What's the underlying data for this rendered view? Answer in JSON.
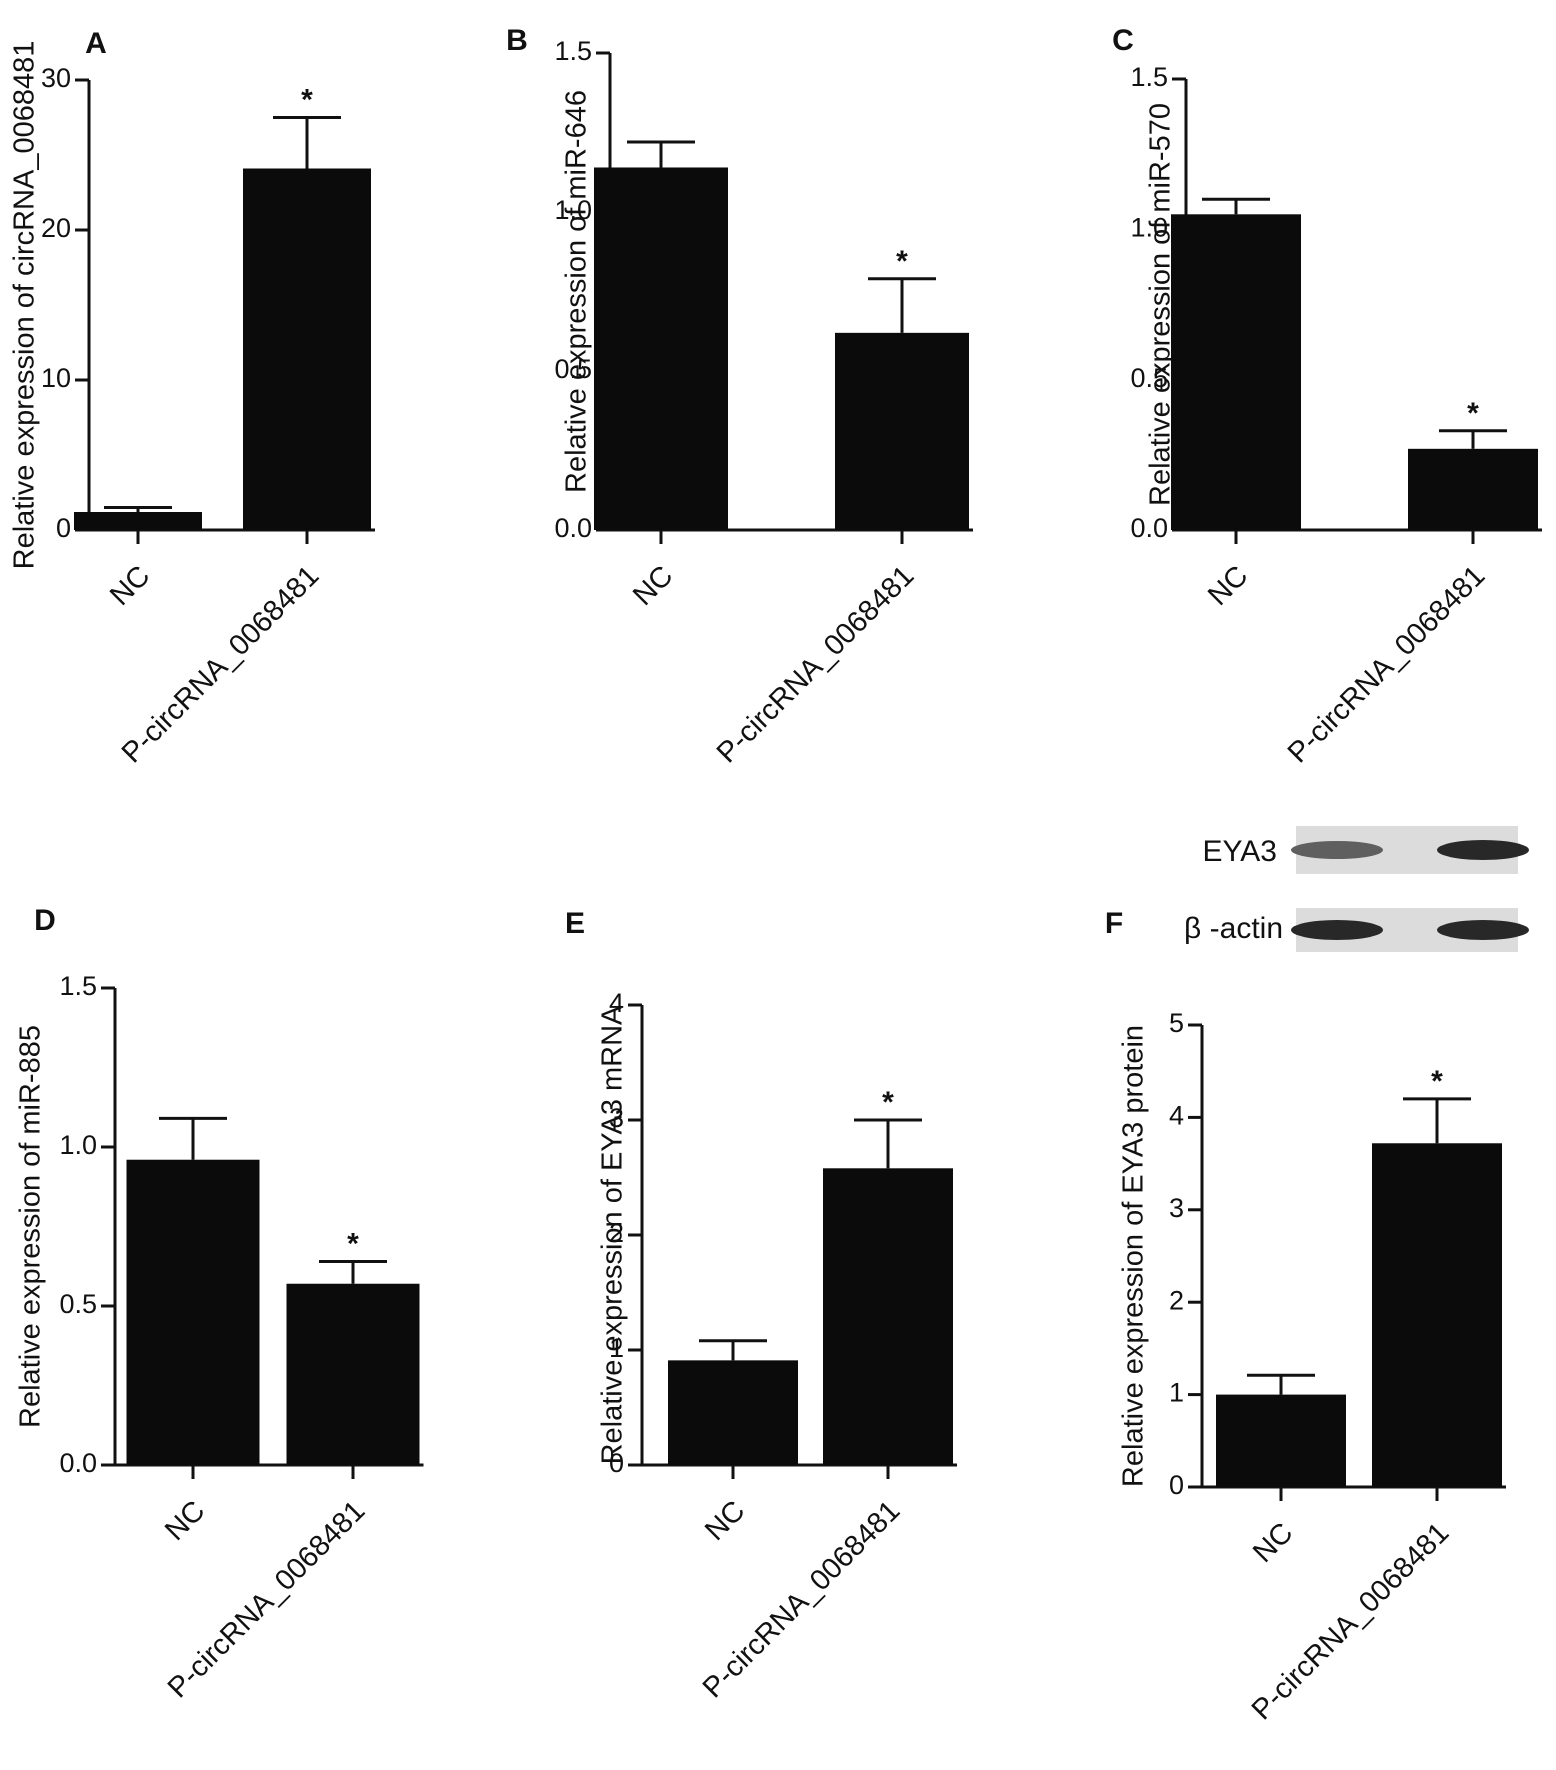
{
  "figure": {
    "blot": {
      "rows": [
        {
          "label": "EYA3",
          "band_intensity": [
            0.5,
            1.0
          ]
        },
        {
          "label": "β -actin",
          "band_intensity": [
            1.0,
            1.0
          ]
        }
      ]
    }
  },
  "chart_data": [
    {
      "panel": "A",
      "type": "bar",
      "categories": [
        "NC",
        "P-circRNA_0068481"
      ],
      "values": [
        1.2,
        24.1
      ],
      "errors": [
        0.3,
        3.4
      ],
      "significance": [
        "",
        "*"
      ],
      "ylabel": "Relative expression of circRNA_0068481",
      "ylim": [
        0,
        30
      ],
      "yticks": [
        "0",
        "10",
        "20",
        "30"
      ],
      "grid": false
    },
    {
      "panel": "B",
      "type": "bar",
      "categories": [
        "NC",
        "P-circRNA_0068481"
      ],
      "values": [
        1.14,
        0.62
      ],
      "errors": [
        0.08,
        0.17
      ],
      "significance": [
        "",
        "*"
      ],
      "ylabel": "Relative expression of miR-646",
      "ylim": [
        0,
        1.5
      ],
      "yticks": [
        "0.0",
        "0.5",
        "1.0",
        "1.5"
      ],
      "grid": false
    },
    {
      "panel": "C",
      "type": "bar",
      "categories": [
        "NC",
        "P-circRNA_0068481"
      ],
      "values": [
        1.05,
        0.27
      ],
      "errors": [
        0.05,
        0.06
      ],
      "significance": [
        "",
        "*"
      ],
      "ylabel": "Relative expression of miR-570",
      "ylim": [
        0,
        1.5
      ],
      "yticks": [
        "0.0",
        "0.5",
        "1.0",
        "1.5"
      ],
      "grid": false
    },
    {
      "panel": "D",
      "type": "bar",
      "categories": [
        "NC",
        "P-circRNA_0068481"
      ],
      "values": [
        0.96,
        0.57
      ],
      "errors": [
        0.13,
        0.07
      ],
      "significance": [
        "",
        "*"
      ],
      "ylabel": "Relative expression of miR-885",
      "ylim": [
        0,
        1.5
      ],
      "yticks": [
        "0.0",
        "0.5",
        "1.0",
        "1.5"
      ],
      "grid": false
    },
    {
      "panel": "E",
      "type": "bar",
      "categories": [
        "NC",
        "P-circRNA_0068481"
      ],
      "values": [
        0.91,
        2.58
      ],
      "errors": [
        0.17,
        0.42
      ],
      "significance": [
        "",
        "*"
      ],
      "ylabel": "Relative expression of EYA3 mRNA",
      "ylim": [
        0,
        4
      ],
      "yticks": [
        "0",
        "1",
        "2",
        "3",
        "4"
      ],
      "grid": false
    },
    {
      "panel": "F",
      "type": "bar",
      "categories": [
        "NC",
        "P-circRNA_0068481"
      ],
      "values": [
        1.0,
        3.72
      ],
      "errors": [
        0.21,
        0.48
      ],
      "significance": [
        "",
        "*"
      ],
      "ylabel": "Relative expression of EYA3 protein",
      "ylim": [
        0,
        5
      ],
      "yticks": [
        "0",
        "1",
        "2",
        "3",
        "4",
        "5"
      ],
      "grid": false
    }
  ]
}
